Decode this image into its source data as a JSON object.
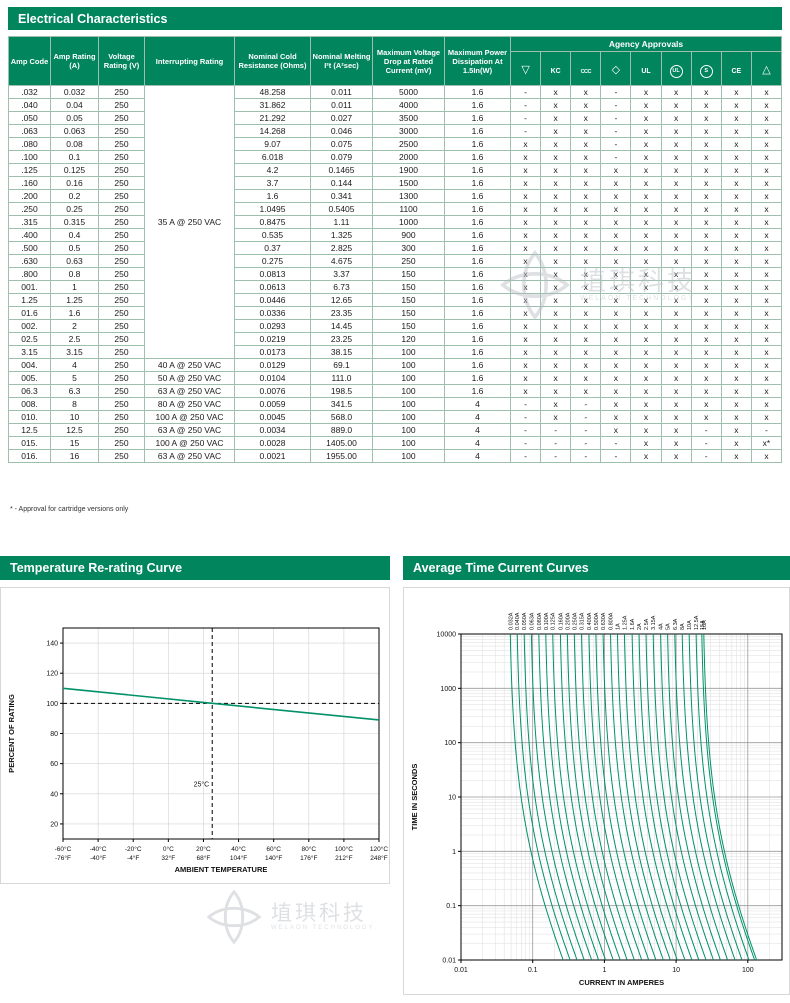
{
  "colors": {
    "green": "#00855C",
    "light_green_cell": "#dcebe2",
    "curve_green": "#00916A",
    "grid_major": "#9a9a9a",
    "grid_minor": "#dddddd",
    "watermark": "#b7bcc2"
  },
  "sections": {
    "electrical": "Electrical Characteristics",
    "temp": "Temperature Re-rating Curve",
    "tcc": "Average Time Current Curves"
  },
  "table": {
    "headers": [
      "Amp Code",
      "Amp Rating (A)",
      "Voltage Rating (V)",
      "Interrupting Rating",
      "Nominal Cold Resistance (Ohms)",
      "Nominal Melting I²t (A²sec)",
      "Maximum Voltage Drop at Rated Current (mV)",
      "Maximum Power Dissipation At 1.5In(W)"
    ],
    "agency_header": "Agency Approvals",
    "agency_marks": [
      {
        "name": "vde-icon",
        "glyph": "▽",
        "shape": "glyph"
      },
      {
        "name": "kc-icon",
        "glyph": "KC",
        "shape": "text"
      },
      {
        "name": "ccc-icon",
        "glyph": "CCC",
        "shape": "small-text"
      },
      {
        "name": "pse-diamond-icon",
        "glyph": "◇",
        "shape": "glyph"
      },
      {
        "name": "ul-recognized-icon",
        "glyph": "UL",
        "shape": "text"
      },
      {
        "name": "ul-listed-icon",
        "glyph": "UL",
        "shape": "circle"
      },
      {
        "name": "s-mark-icon",
        "glyph": "S",
        "shape": "circle"
      },
      {
        "name": "ce-icon",
        "glyph": "CE",
        "shape": "text"
      },
      {
        "name": "triangle-mark-icon",
        "glyph": "△",
        "shape": "glyph"
      }
    ],
    "interrupting_merged": {
      "label": "35 A @ 250 VAC",
      "rows": 21
    },
    "rows": [
      {
        "code": ".032",
        "amp_rating": "0.032",
        "voltage_rating": "250",
        "interrupting": "",
        "cold_resistance": "48.258",
        "melting_i2t": "0.011",
        "voltage_drop": "5000",
        "power_dissipation": "1.6",
        "approvals": [
          "-",
          "x",
          "x",
          "-",
          "x",
          "x",
          "x",
          "x",
          "x"
        ]
      },
      {
        "code": ".040",
        "amp_rating": "0.04",
        "voltage_rating": "250",
        "interrupting": "",
        "cold_resistance": "31.862",
        "melting_i2t": "0.011",
        "voltage_drop": "4000",
        "power_dissipation": "1.6",
        "approvals": [
          "-",
          "x",
          "x",
          "-",
          "x",
          "x",
          "x",
          "x",
          "x"
        ]
      },
      {
        "code": ".050",
        "amp_rating": "0.05",
        "voltage_rating": "250",
        "interrupting": "",
        "cold_resistance": "21.292",
        "melting_i2t": "0.027",
        "voltage_drop": "3500",
        "power_dissipation": "1.6",
        "approvals": [
          "-",
          "x",
          "x",
          "-",
          "x",
          "x",
          "x",
          "x",
          "x"
        ]
      },
      {
        "code": ".063",
        "amp_rating": "0.063",
        "voltage_rating": "250",
        "interrupting": "",
        "cold_resistance": "14.268",
        "melting_i2t": "0.046",
        "voltage_drop": "3000",
        "power_dissipation": "1.6",
        "approvals": [
          "-",
          "x",
          "x",
          "-",
          "x",
          "x",
          "x",
          "x",
          "x"
        ]
      },
      {
        "code": ".080",
        "amp_rating": "0.08",
        "voltage_rating": "250",
        "interrupting": "",
        "cold_resistance": "9.07",
        "melting_i2t": "0.075",
        "voltage_drop": "2500",
        "power_dissipation": "1.6",
        "approvals": [
          "x",
          "x",
          "x",
          "-",
          "x",
          "x",
          "x",
          "x",
          "x"
        ]
      },
      {
        "code": ".100",
        "amp_rating": "0.1",
        "voltage_rating": "250",
        "interrupting": "",
        "cold_resistance": "6.018",
        "melting_i2t": "0.079",
        "voltage_drop": "2000",
        "power_dissipation": "1.6",
        "approvals": [
          "x",
          "x",
          "x",
          "-",
          "x",
          "x",
          "x",
          "x",
          "x"
        ]
      },
      {
        "code": ".125",
        "amp_rating": "0.125",
        "voltage_rating": "250",
        "interrupting": "",
        "cold_resistance": "4.2",
        "melting_i2t": "0.1465",
        "voltage_drop": "1900",
        "power_dissipation": "1.6",
        "approvals": [
          "x",
          "x",
          "x",
          "x",
          "x",
          "x",
          "x",
          "x",
          "x"
        ]
      },
      {
        "code": ".160",
        "amp_rating": "0.16",
        "voltage_rating": "250",
        "interrupting": "",
        "cold_resistance": "3.7",
        "melting_i2t": "0.144",
        "voltage_drop": "1500",
        "power_dissipation": "1.6",
        "approvals": [
          "x",
          "x",
          "x",
          "x",
          "x",
          "x",
          "x",
          "x",
          "x"
        ]
      },
      {
        "code": ".200",
        "amp_rating": "0.2",
        "voltage_rating": "250",
        "interrupting": "",
        "cold_resistance": "1.6",
        "melting_i2t": "0.341",
        "voltage_drop": "1300",
        "power_dissipation": "1.6",
        "approvals": [
          "x",
          "x",
          "x",
          "x",
          "x",
          "x",
          "x",
          "x",
          "x"
        ]
      },
      {
        "code": ".250",
        "amp_rating": "0.25",
        "voltage_rating": "250",
        "interrupting": "",
        "cold_resistance": "1.0495",
        "melting_i2t": "0.5405",
        "voltage_drop": "1100",
        "power_dissipation": "1.6",
        "approvals": [
          "x",
          "x",
          "x",
          "x",
          "x",
          "x",
          "x",
          "x",
          "x"
        ]
      },
      {
        "code": ".315",
        "amp_rating": "0.315",
        "voltage_rating": "250",
        "interrupting": "",
        "cold_resistance": "0.8475",
        "melting_i2t": "1.11",
        "voltage_drop": "1000",
        "power_dissipation": "1.6",
        "approvals": [
          "x",
          "x",
          "x",
          "x",
          "x",
          "x",
          "x",
          "x",
          "x"
        ]
      },
      {
        "code": ".400",
        "amp_rating": "0.4",
        "voltage_rating": "250",
        "interrupting": "",
        "cold_resistance": "0.535",
        "melting_i2t": "1.325",
        "voltage_drop": "900",
        "power_dissipation": "1.6",
        "approvals": [
          "x",
          "x",
          "x",
          "x",
          "x",
          "x",
          "x",
          "x",
          "x"
        ]
      },
      {
        "code": ".500",
        "amp_rating": "0.5",
        "voltage_rating": "250",
        "interrupting": "",
        "cold_resistance": "0.37",
        "melting_i2t": "2.825",
        "voltage_drop": "300",
        "power_dissipation": "1.6",
        "approvals": [
          "x",
          "x",
          "x",
          "x",
          "x",
          "x",
          "x",
          "x",
          "x"
        ]
      },
      {
        "code": ".630",
        "amp_rating": "0.63",
        "voltage_rating": "250",
        "interrupting": "",
        "cold_resistance": "0.275",
        "melting_i2t": "4.675",
        "voltage_drop": "250",
        "power_dissipation": "1.6",
        "approvals": [
          "x",
          "x",
          "x",
          "x",
          "x",
          "x",
          "x",
          "x",
          "x"
        ]
      },
      {
        "code": ".800",
        "amp_rating": "0.8",
        "voltage_rating": "250",
        "interrupting": "",
        "cold_resistance": "0.0813",
        "melting_i2t": "3.37",
        "voltage_drop": "150",
        "power_dissipation": "1.6",
        "approvals": [
          "x",
          "x",
          "x",
          "x",
          "x",
          "x",
          "x",
          "x",
          "x"
        ]
      },
      {
        "code": "001.",
        "amp_rating": "1",
        "voltage_rating": "250",
        "interrupting": "",
        "cold_resistance": "0.0613",
        "melting_i2t": "6.73",
        "voltage_drop": "150",
        "power_dissipation": "1.6",
        "approvals": [
          "x",
          "x",
          "x",
          "x",
          "x",
          "x",
          "x",
          "x",
          "x"
        ]
      },
      {
        "code": "1.25",
        "amp_rating": "1.25",
        "voltage_rating": "250",
        "interrupting": "",
        "cold_resistance": "0.0446",
        "melting_i2t": "12.65",
        "voltage_drop": "150",
        "power_dissipation": "1.6",
        "approvals": [
          "x",
          "x",
          "x",
          "x",
          "x",
          "x",
          "x",
          "x",
          "x"
        ]
      },
      {
        "code": "01.6",
        "amp_rating": "1.6",
        "voltage_rating": "250",
        "interrupting": "",
        "cold_resistance": "0.0336",
        "melting_i2t": "23.35",
        "voltage_drop": "150",
        "power_dissipation": "1.6",
        "approvals": [
          "x",
          "x",
          "x",
          "x",
          "x",
          "x",
          "x",
          "x",
          "x"
        ]
      },
      {
        "code": "002.",
        "amp_rating": "2",
        "voltage_rating": "250",
        "interrupting": "",
        "cold_resistance": "0.0293",
        "melting_i2t": "14.45",
        "voltage_drop": "150",
        "power_dissipation": "1.6",
        "approvals": [
          "x",
          "x",
          "x",
          "x",
          "x",
          "x",
          "x",
          "x",
          "x"
        ]
      },
      {
        "code": "02.5",
        "amp_rating": "2.5",
        "voltage_rating": "250",
        "interrupting": "",
        "cold_resistance": "0.0219",
        "melting_i2t": "23.25",
        "voltage_drop": "120",
        "power_dissipation": "1.6",
        "approvals": [
          "x",
          "x",
          "x",
          "x",
          "x",
          "x",
          "x",
          "x",
          "x"
        ]
      },
      {
        "code": "3.15",
        "amp_rating": "3.15",
        "voltage_rating": "250",
        "interrupting": "",
        "cold_resistance": "0.0173",
        "melting_i2t": "38.15",
        "voltage_drop": "100",
        "power_dissipation": "1.6",
        "approvals": [
          "x",
          "x",
          "x",
          "x",
          "x",
          "x",
          "x",
          "x",
          "x"
        ]
      },
      {
        "code": "004.",
        "amp_rating": "4",
        "voltage_rating": "250",
        "interrupting": "40 A @ 250 VAC",
        "cold_resistance": "0.0129",
        "melting_i2t": "69.1",
        "voltage_drop": "100",
        "power_dissipation": "1.6",
        "approvals": [
          "x",
          "x",
          "x",
          "x",
          "x",
          "x",
          "x",
          "x",
          "x"
        ]
      },
      {
        "code": "005.",
        "amp_rating": "5",
        "voltage_rating": "250",
        "interrupting": "50 A @ 250 VAC",
        "cold_resistance": "0.0104",
        "melting_i2t": "111.0",
        "voltage_drop": "100",
        "power_dissipation": "1.6",
        "approvals": [
          "x",
          "x",
          "x",
          "x",
          "x",
          "x",
          "x",
          "x",
          "x"
        ]
      },
      {
        "code": "06.3",
        "amp_rating": "6.3",
        "voltage_rating": "250",
        "interrupting": "63 A @ 250 VAC",
        "cold_resistance": "0.0076",
        "melting_i2t": "198.5",
        "voltage_drop": "100",
        "power_dissipation": "1.6",
        "approvals": [
          "x",
          "x",
          "x",
          "x",
          "x",
          "x",
          "x",
          "x",
          "x"
        ]
      },
      {
        "code": "008.",
        "amp_rating": "8",
        "voltage_rating": "250",
        "interrupting": "80 A @ 250 VAC",
        "cold_resistance": "0.0059",
        "melting_i2t": "341.5",
        "voltage_drop": "100",
        "power_dissipation": "4",
        "approvals": [
          "-",
          "x",
          "-",
          "x",
          "x",
          "x",
          "x",
          "x",
          "x"
        ]
      },
      {
        "code": "010.",
        "amp_rating": "10",
        "voltage_rating": "250",
        "interrupting": "100 A @ 250 VAC",
        "cold_resistance": "0.0045",
        "melting_i2t": "568.0",
        "voltage_drop": "100",
        "power_dissipation": "4",
        "approvals": [
          "-",
          "x",
          "-",
          "x",
          "x",
          "x",
          "x",
          "x",
          "x"
        ]
      },
      {
        "code": "12.5",
        "amp_rating": "12.5",
        "voltage_rating": "250",
        "interrupting": "63 A @ 250 VAC",
        "cold_resistance": "0.0034",
        "melting_i2t": "889.0",
        "voltage_drop": "100",
        "power_dissipation": "4",
        "approvals": [
          "-",
          "-",
          "-",
          "x",
          "x",
          "x",
          "-",
          "x",
          "-"
        ]
      },
      {
        "code": "015.",
        "amp_rating": "15",
        "voltage_rating": "250",
        "interrupting": "100 A @ 250 VAC",
        "cold_resistance": "0.0028",
        "melting_i2t": "1405.00",
        "voltage_drop": "100",
        "power_dissipation": "4",
        "approvals": [
          "-",
          "-",
          "-",
          "-",
          "x",
          "x",
          "-",
          "x",
          "x*"
        ]
      },
      {
        "code": "016.",
        "amp_rating": "16",
        "voltage_rating": "250",
        "interrupting": "63 A @ 250 VAC",
        "cold_resistance": "0.0021",
        "melting_i2t": "1955.00",
        "voltage_drop": "100",
        "power_dissipation": "4",
        "approvals": [
          "-",
          "-",
          "-",
          "-",
          "x",
          "x",
          "-",
          "x",
          "x"
        ]
      }
    ],
    "footnote": "* -   Approval for cartridge versions only"
  },
  "watermark": {
    "cjk": "埴琪科技",
    "latin": "WELAON TECHNOLOGY"
  },
  "chart_data": [
    {
      "type": "line",
      "title": "Temperature Re-rating Curve",
      "xlabel": "AMBIENT TEMPERATURE",
      "ylabel": "PERCENT OF RATING",
      "xlim": [
        -60,
        120
      ],
      "ylim": [
        10,
        150
      ],
      "grid": true,
      "x_ticks": [
        -60,
        -40,
        -20,
        0,
        20,
        40,
        60,
        80,
        100,
        120
      ],
      "x_tick_labels_c": [
        "-60°C",
        "-40°C",
        "-20°C",
        "0°C",
        "20°C",
        "40°C",
        "60°C",
        "80°C",
        "100°C",
        "120°C"
      ],
      "x_tick_labels_f": [
        "-76°F",
        "-40°F",
        "-4°F",
        "32°F",
        "68°F",
        "104°F",
        "140°F",
        "176°F",
        "212°F",
        "248°F"
      ],
      "y_ticks": [
        20,
        40,
        60,
        80,
        100,
        120,
        140
      ],
      "series": [
        {
          "name": "re-rating-line",
          "points": [
            [
              -60,
              110
            ],
            [
              25,
              100
            ],
            [
              120,
              89
            ]
          ]
        }
      ],
      "reference": {
        "h_line": 100,
        "v_line": 25,
        "v_line_label": "25°C"
      }
    },
    {
      "type": "line",
      "title": "Average Time Current Curves",
      "xlabel": "CURRENT IN AMPERES",
      "ylabel": "TIME IN SECONDS",
      "scale": "log-log",
      "xlim": [
        0.01,
        300
      ],
      "ylim": [
        0.01,
        10000
      ],
      "grid": true,
      "x_ticks": [
        0.01,
        0.1,
        1,
        10,
        100
      ],
      "y_ticks": [
        0.01,
        0.1,
        1,
        10,
        100,
        1000,
        10000
      ],
      "curves": [
        {
          "label": "0.032A",
          "rating": 0.032
        },
        {
          "label": "0.040A",
          "rating": 0.04
        },
        {
          "label": "0.050A",
          "rating": 0.05
        },
        {
          "label": "0.063A",
          "rating": 0.063
        },
        {
          "label": "0.080A",
          "rating": 0.08
        },
        {
          "label": "0.100A",
          "rating": 0.1
        },
        {
          "label": "0.125A",
          "rating": 0.125
        },
        {
          "label": "0.160A",
          "rating": 0.16
        },
        {
          "label": "0.200A",
          "rating": 0.2
        },
        {
          "label": "0.250A",
          "rating": 0.25
        },
        {
          "label": "0.315A",
          "rating": 0.315
        },
        {
          "label": "0.400A",
          "rating": 0.4
        },
        {
          "label": "0.500A",
          "rating": 0.5
        },
        {
          "label": "0.630A",
          "rating": 0.63
        },
        {
          "label": "0.800A",
          "rating": 0.8
        },
        {
          "label": "1A",
          "rating": 1
        },
        {
          "label": "1.25A",
          "rating": 1.25
        },
        {
          "label": "1.6A",
          "rating": 1.6
        },
        {
          "label": "2A",
          "rating": 2
        },
        {
          "label": "2.5A",
          "rating": 2.5
        },
        {
          "label": "3.15A",
          "rating": 3.15
        },
        {
          "label": "4A",
          "rating": 4
        },
        {
          "label": "5A",
          "rating": 5
        },
        {
          "label": "6.3A",
          "rating": 6.3
        },
        {
          "label": "8A",
          "rating": 8
        },
        {
          "label": "10A",
          "rating": 10
        },
        {
          "label": "12.5A",
          "rating": 12.5
        },
        {
          "label": "15A",
          "rating": 15
        },
        {
          "label": "16A",
          "rating": 16
        }
      ]
    }
  ]
}
